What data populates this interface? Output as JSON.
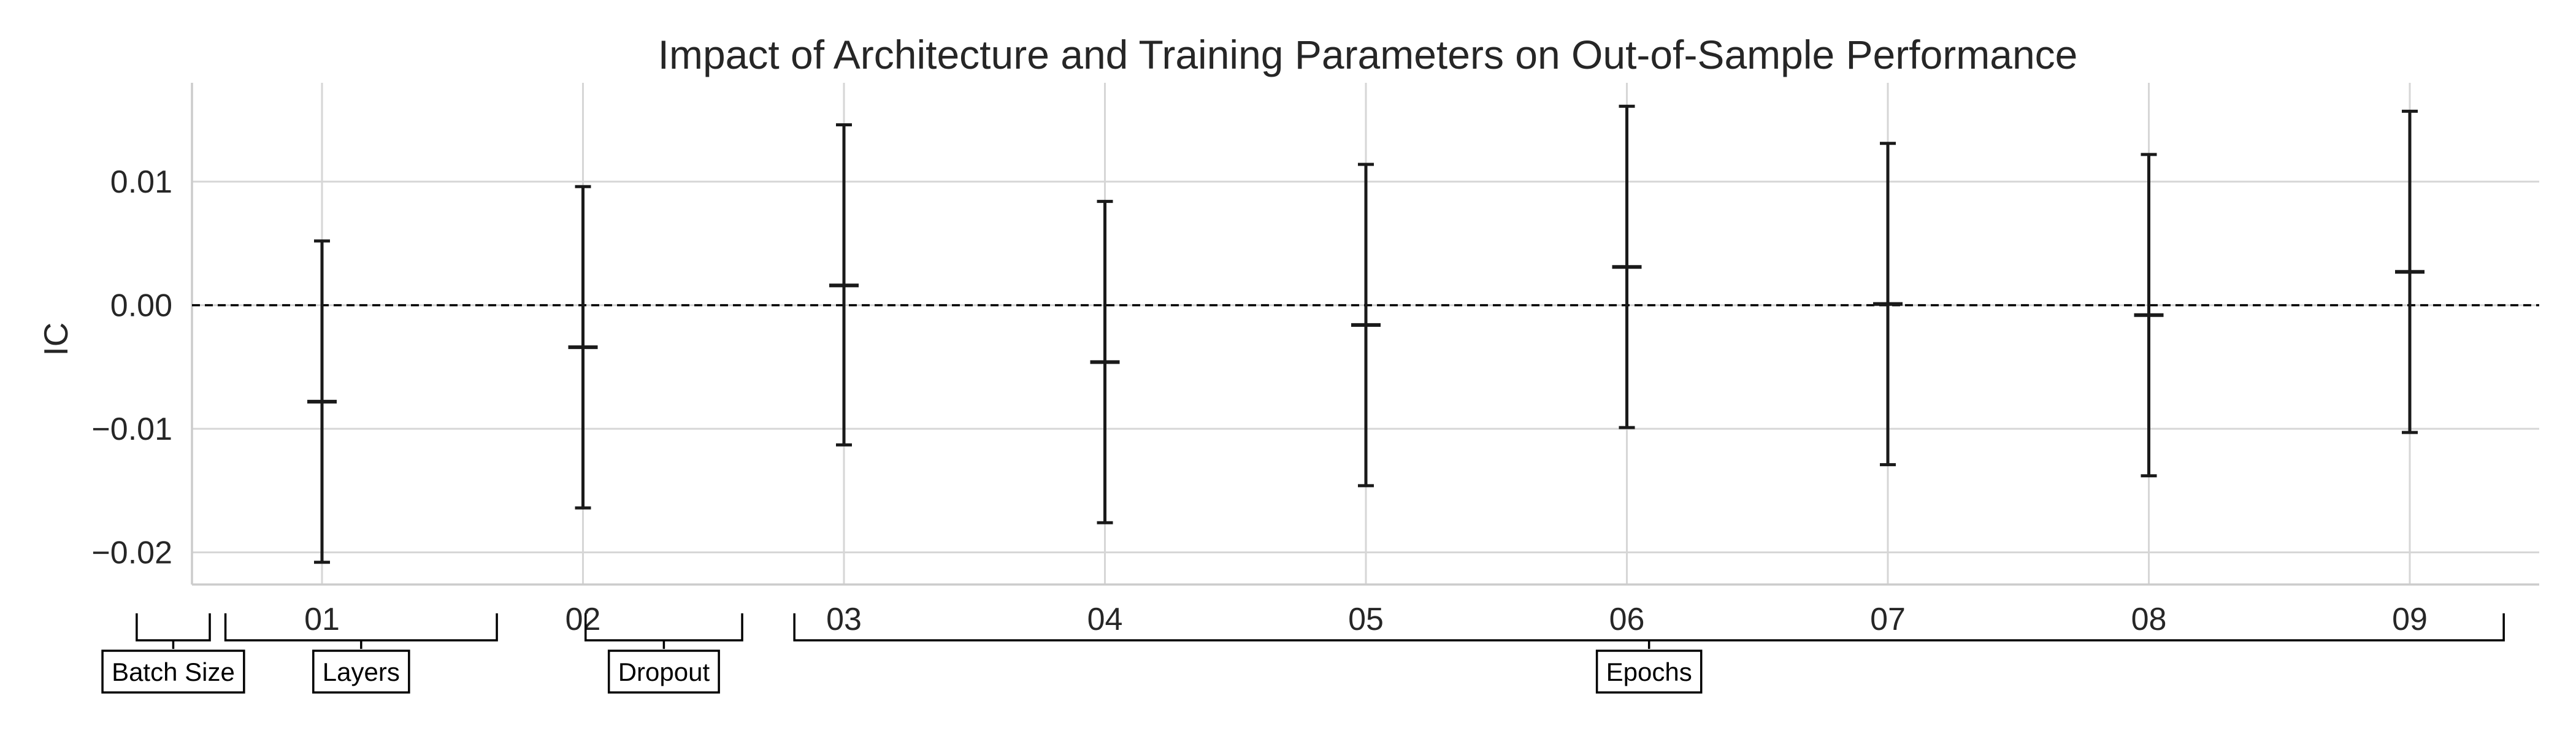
{
  "chart_data": {
    "type": "errorbar",
    "title": "Impact of Architecture and Training Parameters on Out-of-Sample Performance",
    "xlabel": "",
    "ylabel": "IC",
    "categories": [
      "01",
      "02",
      "03",
      "04",
      "05",
      "06",
      "07",
      "08",
      "09"
    ],
    "series": [
      {
        "mean": [
          -0.0078,
          -0.0034,
          0.0016,
          -0.0046,
          -0.0016,
          0.0031,
          0.0001,
          -0.0008,
          0.0027
        ],
        "lower": [
          -0.0208,
          -0.0164,
          -0.0113,
          -0.0176,
          -0.0146,
          -0.0099,
          -0.0129,
          -0.0138,
          -0.0103
        ],
        "upper": [
          0.0052,
          0.0096,
          0.0146,
          0.0084,
          0.0114,
          0.0161,
          0.0131,
          0.0122,
          0.0157
        ]
      }
    ],
    "ylim": [
      -0.0226,
      0.018
    ],
    "yticks": [
      0.01,
      0.0,
      -0.01,
      -0.02
    ],
    "ytick_labels": [
      "0.01",
      "0.00",
      "−0.01",
      "−0.02"
    ],
    "reference_line": {
      "y": 0,
      "style": "dashed"
    },
    "grid": true,
    "groups": [
      {
        "label": "Batch Size",
        "start": 0.29,
        "end": 0.57
      },
      {
        "label": "Layers",
        "start": 0.63,
        "end": 1.67
      },
      {
        "label": "Dropout",
        "start": 2.01,
        "end": 2.61
      },
      {
        "label": "Epochs",
        "start": 2.81,
        "end": 9.36
      }
    ],
    "colors": {
      "bars": "#1a1a1a",
      "grid": "#d6d6d6",
      "axes": "#cccccc",
      "text": "#262626"
    }
  }
}
